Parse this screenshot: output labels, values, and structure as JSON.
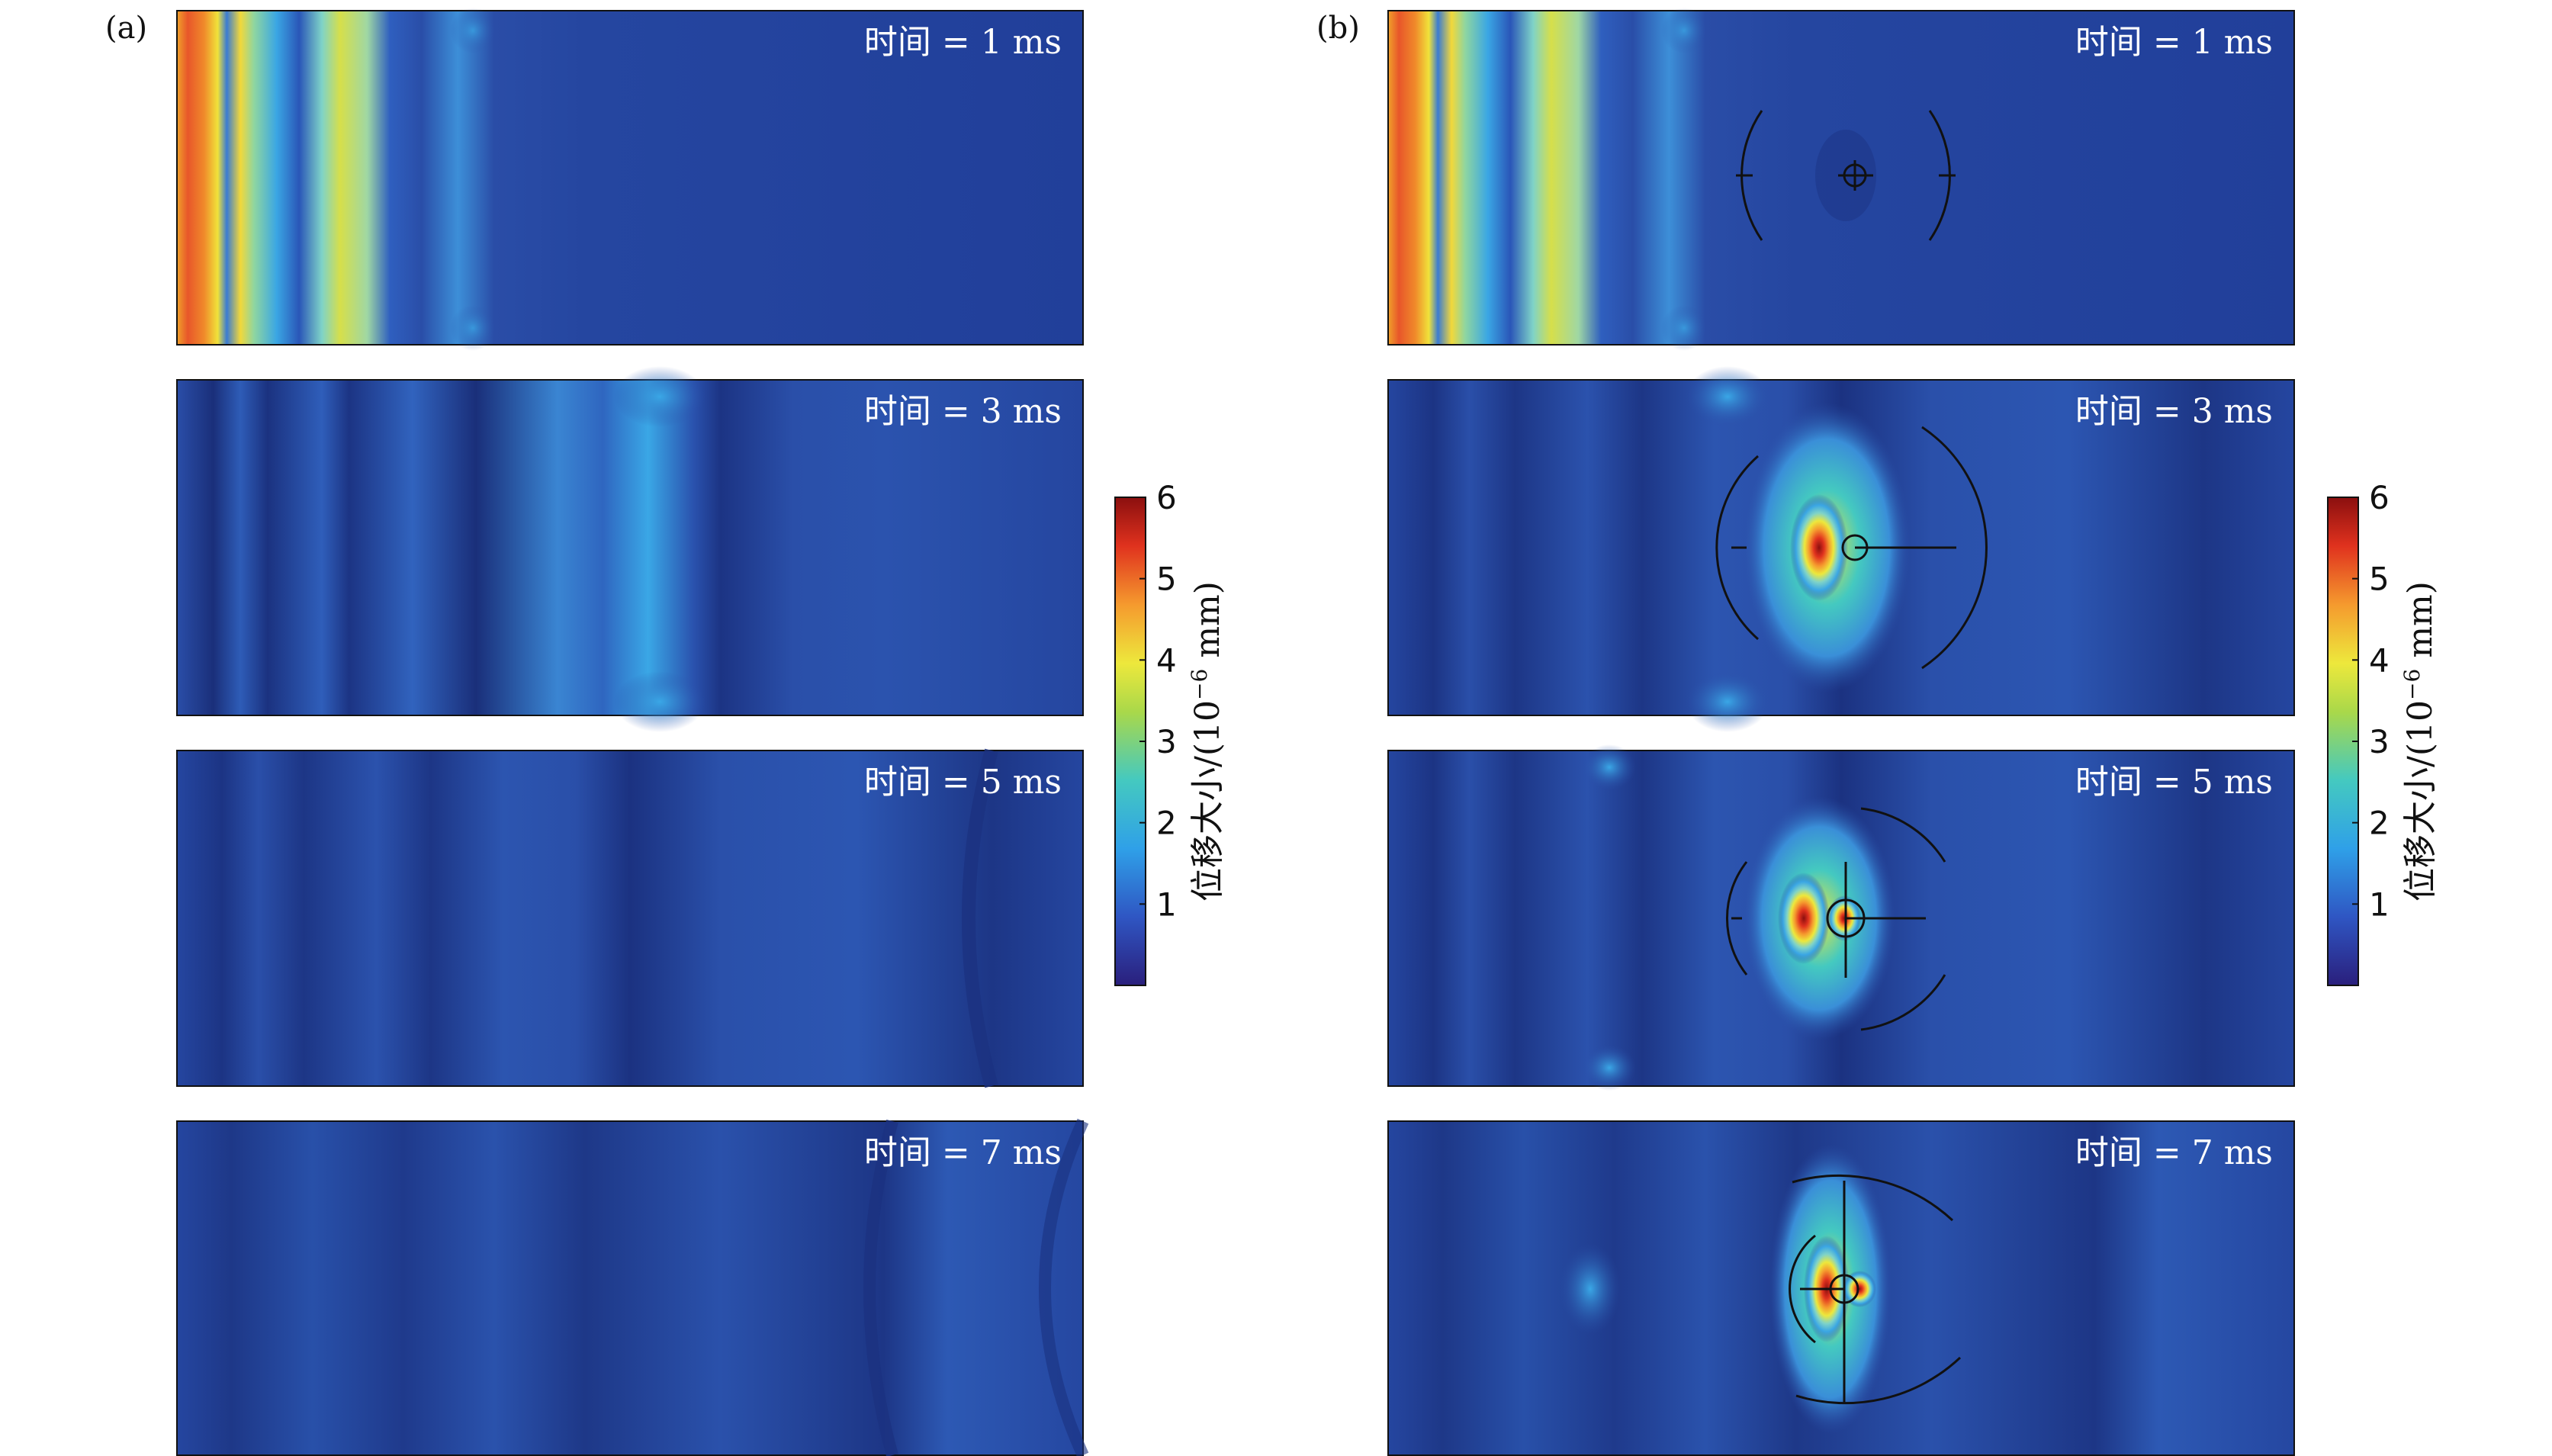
{
  "figure": {
    "panels": [
      {
        "label": "(a)",
        "has_obstacle": false,
        "frames": [
          {
            "time_label": "时间 = 1 ms",
            "time_ms": 1
          },
          {
            "time_label": "时间 = 3 ms",
            "time_ms": 3
          },
          {
            "time_label": "时间 = 5 ms",
            "time_ms": 5
          },
          {
            "time_label": "时间 = 7 ms",
            "time_ms": 7
          }
        ]
      },
      {
        "label": "(b)",
        "has_obstacle": true,
        "frames": [
          {
            "time_label": "时间 = 1 ms",
            "time_ms": 1
          },
          {
            "time_label": "时间 = 3 ms",
            "time_ms": 3
          },
          {
            "time_label": "时间 = 5 ms",
            "time_ms": 5
          },
          {
            "time_label": "时间 = 7 ms",
            "time_ms": 7
          }
        ]
      }
    ],
    "colorbar": {
      "title_main": "位移大小/(10",
      "title_exponent": "−6",
      "title_unit": " mm)",
      "min": 0,
      "max": 6,
      "ticks": [
        "1",
        "2",
        "3",
        "4",
        "5",
        "6"
      ],
      "colors": [
        "#2a1f7c",
        "#2f56c3",
        "#2fa0e8",
        "#44c9c0",
        "#a9d84a",
        "#ede83c",
        "#f59a2e",
        "#e0321e",
        "#8b0f0f"
      ]
    },
    "colors": {
      "field_base": "#22419f",
      "field_dark": "#1a2f7a",
      "frame_border": "#111111",
      "text_on_field": "#ffffff"
    }
  }
}
